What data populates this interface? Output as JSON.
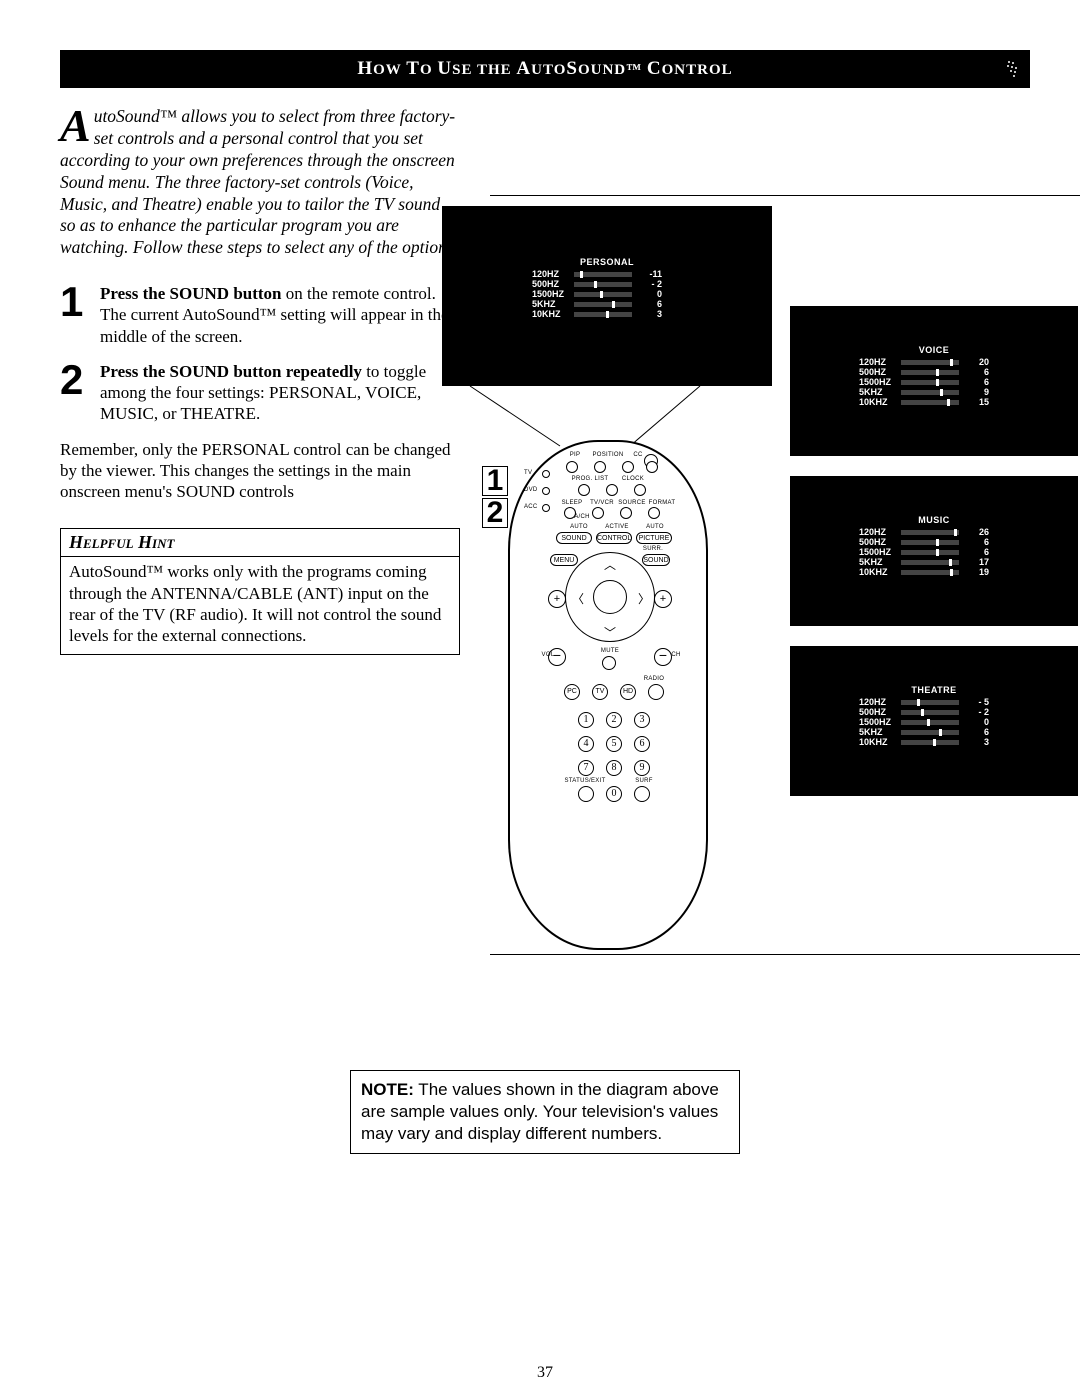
{
  "title": {
    "segments": [
      {
        "text": "H",
        "class": "t1"
      },
      {
        "text": "OW ",
        "class": "t2"
      },
      {
        "text": "T",
        "class": "t1"
      },
      {
        "text": "O ",
        "class": "t2"
      },
      {
        "text": "U",
        "class": "t1"
      },
      {
        "text": "SE THE ",
        "class": "t2"
      },
      {
        "text": "A",
        "class": "t1"
      },
      {
        "text": "UTO",
        "class": "t2"
      },
      {
        "text": "S",
        "class": "t1"
      },
      {
        "text": "OUND™ ",
        "class": "t2"
      },
      {
        "text": "C",
        "class": "t1"
      },
      {
        "text": "ONTROL",
        "class": "t2"
      }
    ]
  },
  "intro": {
    "dropcap": "A",
    "text": "utoSound™ allows you to select from three factory-set controls and a personal control that you set according to your own preferences through the onscreen Sound menu. The three factory-set controls (Voice, Music, and Theatre) enable you to tailor the TV sound so as to enhance the particular program you are watching.  Follow these steps to select any of the options."
  },
  "steps": [
    {
      "num": "1",
      "bold": "Press the SOUND button",
      "rest": " on the remote control.  The current AutoSound™ setting will appear in the middle of the screen."
    },
    {
      "num": "2",
      "bold": "Press the SOUND button repeatedly",
      "rest": " to toggle among the four settings: PERSONAL, VOICE, MUSIC, or THEATRE."
    }
  ],
  "remember": "Remember, only the PERSONAL control can be changed by the viewer.  This changes the settings in the main onscreen menu's SOUND controls",
  "hint": {
    "title": "Helpful Hint",
    "body": "AutoSound™ works only with the programs coming through the ANTENNA/CABLE (ANT) input on the rear of the TV (RF audio).  It will not control the sound levels for the external connections."
  },
  "note": {
    "bold": "NOTE:",
    "text": " The values shown in the diagram above are sample values only. Your television's values may vary and display different numbers."
  },
  "pagenum": "37",
  "eq": {
    "freqs": [
      "120HZ",
      "500HZ",
      "1500HZ",
      "5KHZ",
      "10KHZ"
    ],
    "presets": [
      {
        "name": "PERSONAL",
        "values": [
          "-11",
          "- 2",
          "0",
          "6",
          "3"
        ],
        "slider_pos": [
          10,
          35,
          45,
          65,
          55
        ]
      },
      {
        "name": "VOICE",
        "values": [
          "20",
          "6",
          "6",
          "9",
          "15"
        ],
        "slider_pos": [
          85,
          60,
          60,
          68,
          80
        ]
      },
      {
        "name": "MUSIC",
        "values": [
          "26",
          "6",
          "6",
          "17",
          "19"
        ],
        "slider_pos": [
          92,
          60,
          60,
          82,
          85
        ]
      },
      {
        "name": "THEATRE",
        "values": [
          "- 5",
          "- 2",
          "0",
          "6",
          "3"
        ],
        "slider_pos": [
          28,
          35,
          45,
          65,
          55
        ]
      }
    ]
  },
  "remote": {
    "side_nums": [
      "1",
      "2"
    ],
    "top_labels": [
      "PIP",
      "POSITION",
      "CC"
    ],
    "row2_labels": [
      "PROG. LIST",
      "CLOCK"
    ],
    "row3_labels": [
      "SLEEP",
      "TV/VCR",
      "SOURCE",
      "FORMAT"
    ],
    "side_labels_left": [
      "TV",
      "DVD",
      "ACC"
    ],
    "row4_labels": [
      "AUTO",
      "ACTIVE",
      "AUTO"
    ],
    "pill_row": [
      "SOUND",
      "CONTROL",
      "PICTURE"
    ],
    "surr": "SURR.",
    "dpad_left": "MENU",
    "dpad_right": "SOUND",
    "vol_ch": [
      "VOL",
      "CH"
    ],
    "mute": "MUTE",
    "radio": "RADIO",
    "mode_row": [
      "PC",
      "TV",
      "HD"
    ],
    "keypad": [
      "1",
      "2",
      "3",
      "4",
      "5",
      "6",
      "7",
      "8",
      "9",
      "0"
    ],
    "bottom_left": "STATUS/EXIT",
    "bottom_right": "SURF"
  },
  "colors": {
    "page_bg": "#ffffff",
    "title_bg": "#000000",
    "title_fg": "#ffffff",
    "tv_bg": "#000000",
    "text": "#000000"
  }
}
